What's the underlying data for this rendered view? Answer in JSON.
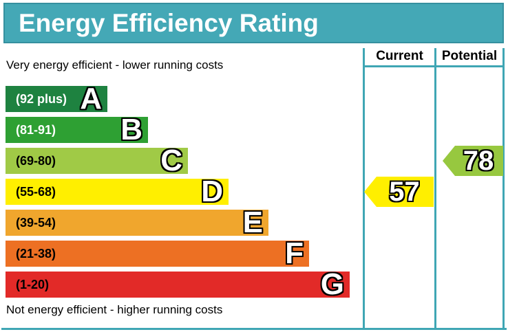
{
  "title": "Energy Efficiency Rating",
  "header": {
    "current_label": "Current",
    "potential_label": "Potential"
  },
  "notes": {
    "top": "Very energy efficient - lower running costs",
    "bottom": "Not energy efficient - higher running costs"
  },
  "theme": {
    "teal": "#3fa6b4",
    "title_bg": "#44a8b6",
    "title_border": "#35909f",
    "title_text": "#ffffff"
  },
  "chart_data": {
    "type": "bar",
    "title": "Energy Efficiency Rating",
    "orientation": "horizontal",
    "categories": [
      "A",
      "B",
      "C",
      "D",
      "E",
      "F",
      "G"
    ],
    "bands": [
      {
        "letter": "A",
        "range_label": "(92 plus)",
        "min": 92,
        "max": 100,
        "color": "#1e8240",
        "label_color": "#ffffff"
      },
      {
        "letter": "B",
        "range_label": "(81-91)",
        "min": 81,
        "max": 91,
        "color": "#2ea033",
        "label_color": "#ffffff"
      },
      {
        "letter": "C",
        "range_label": "(69-80)",
        "min": 69,
        "max": 80,
        "color": "#a0ca46",
        "label_color": "#000000"
      },
      {
        "letter": "D",
        "range_label": "(55-68)",
        "min": 55,
        "max": 68,
        "color": "#ffef00",
        "label_color": "#000000"
      },
      {
        "letter": "E",
        "range_label": "(39-54)",
        "min": 39,
        "max": 54,
        "color": "#f0a62d",
        "label_color": "#000000"
      },
      {
        "letter": "F",
        "range_label": "(21-38)",
        "min": 21,
        "max": 38,
        "color": "#ed7023",
        "label_color": "#000000"
      },
      {
        "letter": "G",
        "range_label": "(1-20)",
        "min": 1,
        "max": 20,
        "color": "#e22a28",
        "label_color": "#000000"
      }
    ],
    "current": {
      "value": 57,
      "band": "D",
      "arrow_color": "#ffef00"
    },
    "potential": {
      "value": 78,
      "band": "C",
      "arrow_color": "#97c83f"
    }
  }
}
